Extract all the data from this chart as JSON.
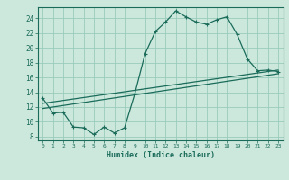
{
  "xlabel": "Humidex (Indice chaleur)",
  "ylabel": "",
  "background_color": "#cce8dc",
  "grid_color": "#99ccbb",
  "line_color": "#1a6b5a",
  "xlim": [
    -0.5,
    23.5
  ],
  "ylim": [
    7.5,
    25.5
  ],
  "xticks": [
    0,
    1,
    2,
    3,
    4,
    5,
    6,
    7,
    8,
    9,
    10,
    11,
    12,
    13,
    14,
    15,
    16,
    17,
    18,
    19,
    20,
    21,
    22,
    23
  ],
  "yticks": [
    8,
    10,
    12,
    14,
    16,
    18,
    20,
    22,
    24
  ],
  "line1_x": [
    0,
    1,
    2,
    3,
    4,
    5,
    6,
    7,
    8,
    9,
    10,
    11,
    12,
    13,
    14,
    15,
    16,
    17,
    18,
    19,
    20,
    21,
    22,
    23
  ],
  "line1_y": [
    13.2,
    11.2,
    11.3,
    9.3,
    9.2,
    8.3,
    9.3,
    8.5,
    9.2,
    13.8,
    19.2,
    22.2,
    23.5,
    25.0,
    24.2,
    23.5,
    23.2,
    23.8,
    24.2,
    21.8,
    18.5,
    16.9,
    17.0,
    16.8
  ],
  "line2_x": [
    0,
    23
  ],
  "line2_y": [
    11.8,
    16.5
  ],
  "line3_x": [
    0,
    23
  ],
  "line3_y": [
    12.5,
    17.0
  ]
}
